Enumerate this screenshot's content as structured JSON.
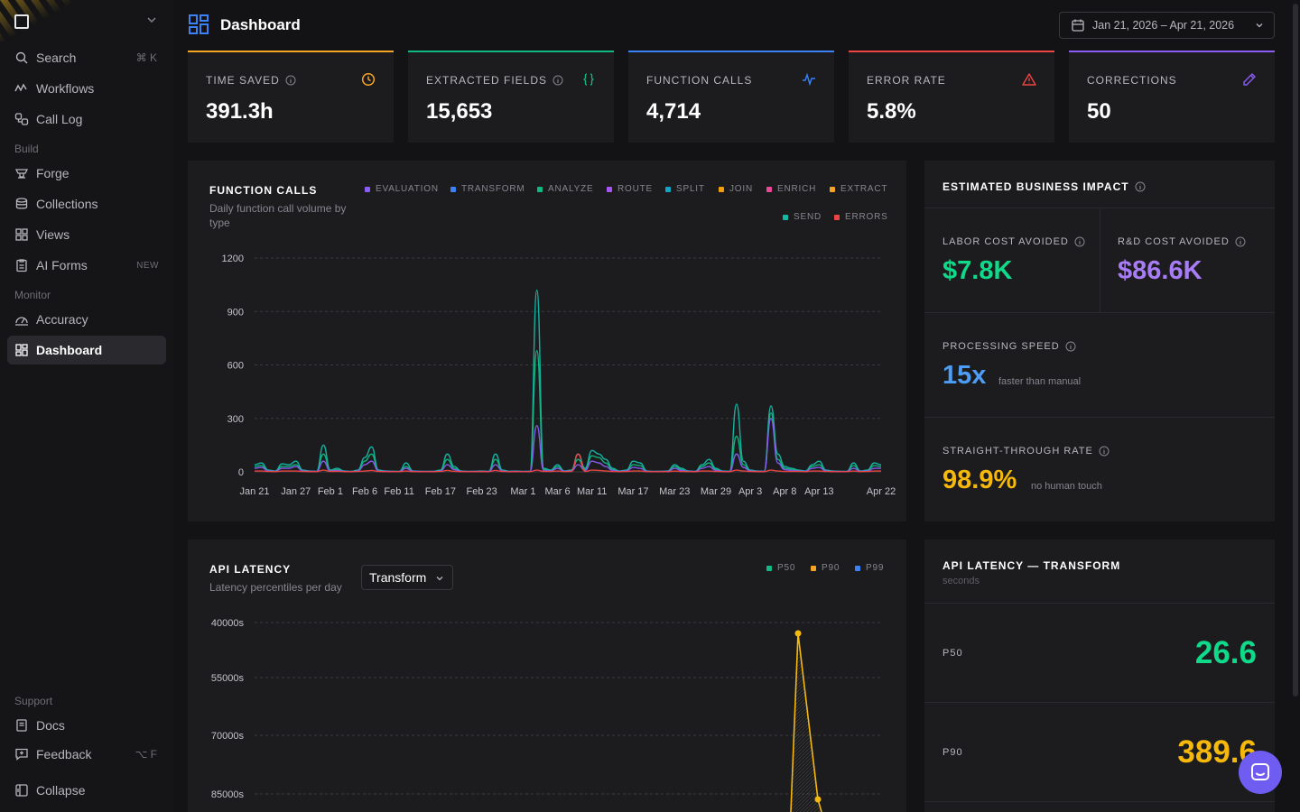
{
  "sidebar": {
    "search": {
      "label": "Search",
      "shortcut": "⌘ K"
    },
    "items_top": [
      {
        "label": "Workflows",
        "icon": "workflow-icon"
      },
      {
        "label": "Call Log",
        "icon": "call-log-icon"
      }
    ],
    "build_section": "Build",
    "build_items": [
      {
        "label": "Forge",
        "icon": "forge-icon"
      },
      {
        "label": "Collections",
        "icon": "database-icon"
      },
      {
        "label": "Views",
        "icon": "grid-icon"
      },
      {
        "label": "AI Forms",
        "icon": "clipboard-icon",
        "badge": "NEW"
      }
    ],
    "monitor_section": "Monitor",
    "monitor_items": [
      {
        "label": "Accuracy",
        "icon": "gauge-icon"
      },
      {
        "label": "Dashboard",
        "icon": "dashboard-icon",
        "active": true
      }
    ],
    "support_section": "Support",
    "support_items": [
      {
        "label": "Docs",
        "icon": "book-icon"
      },
      {
        "label": "Feedback",
        "icon": "feedback-icon",
        "shortcut": "⌥ F"
      }
    ],
    "collapse": {
      "label": "Collapse"
    }
  },
  "header": {
    "title": "Dashboard",
    "date_range": "Jan 21, 2026 – Apr 21, 2026"
  },
  "stats": [
    {
      "label": "TIME SAVED",
      "value": "391.3h",
      "color": "#f5a524",
      "icon": "clock-icon"
    },
    {
      "label": "EXTRACTED FIELDS",
      "value": "15,653",
      "color": "#10b981",
      "icon": "braces-icon"
    },
    {
      "label": "FUNCTION CALLS",
      "value": "4,714",
      "color": "#3b82f6",
      "icon": "activity-icon"
    },
    {
      "label": "ERROR RATE",
      "value": "5.8%",
      "color": "#ef4444",
      "icon": "warning-icon"
    },
    {
      "label": "CORRECTIONS",
      "value": "50",
      "color": "#8b5cf6",
      "icon": "pencil-icon"
    }
  ],
  "function_calls_panel": {
    "title": "FUNCTION CALLS",
    "subtitle": "Daily function call volume by type",
    "legend": [
      {
        "name": "EVALUATION",
        "color": "#8b5cf6"
      },
      {
        "name": "TRANSFORM",
        "color": "#3b82f6"
      },
      {
        "name": "ANALYZE",
        "color": "#10b981"
      },
      {
        "name": "ROUTE",
        "color": "#a855f7"
      },
      {
        "name": "SPLIT",
        "color": "#0ea5c6"
      },
      {
        "name": "JOIN",
        "color": "#f59e0b"
      },
      {
        "name": "ENRICH",
        "color": "#ec4899"
      },
      {
        "name": "EXTRACT",
        "color": "#f5a524"
      },
      {
        "name": "SEND",
        "color": "#14b8a6"
      },
      {
        "name": "ERRORS",
        "color": "#ef4444"
      }
    ]
  },
  "chart_data": [
    {
      "type": "line",
      "title": "FUNCTION CALLS",
      "ylim": [
        0,
        1200
      ],
      "yticks": [
        0,
        300,
        600,
        900,
        1200
      ],
      "xticks": [
        "Jan 21",
        "Jan 27",
        "Feb 1",
        "Feb 6",
        "Feb 11",
        "Feb 17",
        "Feb 23",
        "Mar 1",
        "Mar 6",
        "Mar 11",
        "Mar 17",
        "Mar 23",
        "Mar 29",
        "Apr 3",
        "Apr 8",
        "Apr 13",
        "Apr 22"
      ],
      "x": [
        0,
        1,
        2,
        3,
        4,
        5,
        6,
        7,
        8,
        9,
        10,
        11,
        12,
        13,
        14,
        15,
        16,
        17,
        18,
        19,
        20,
        21,
        22,
        23,
        24,
        25,
        26,
        27,
        28,
        29,
        30,
        31,
        32,
        33,
        34,
        35,
        36,
        37,
        38,
        39,
        40,
        41,
        42,
        43,
        44,
        45,
        46,
        47,
        48,
        49,
        50,
        51,
        52,
        53,
        54,
        55,
        56,
        57,
        58,
        59,
        60,
        61,
        62,
        63,
        64,
        65,
        66,
        67,
        68,
        69,
        70,
        71,
        72,
        73,
        74,
        75,
        76,
        77,
        78,
        79,
        80,
        81,
        82,
        83,
        84,
        85,
        86,
        87,
        88,
        89,
        90,
        91
      ],
      "series": [
        {
          "name": "SEND",
          "values": [
            40,
            50,
            10,
            5,
            45,
            40,
            60,
            10,
            5,
            3,
            150,
            10,
            20,
            5,
            2,
            10,
            80,
            140,
            10,
            5,
            3,
            2,
            50,
            5,
            3,
            2,
            3,
            10,
            100,
            30,
            5,
            2,
            3,
            5,
            2,
            100,
            10,
            3,
            5,
            2,
            3,
            1020,
            20,
            10,
            40,
            5,
            10,
            100,
            20,
            120,
            100,
            70,
            20,
            5,
            10,
            60,
            50,
            5,
            2,
            3,
            5,
            40,
            20,
            5,
            3,
            40,
            70,
            20,
            5,
            3,
            380,
            60,
            10,
            5,
            3,
            370,
            100,
            30,
            20,
            10,
            5,
            40,
            60,
            10,
            5,
            3,
            2,
            50,
            5,
            10,
            50,
            40
          ]
        },
        {
          "name": "ANALYZE",
          "values": [
            30,
            35,
            8,
            4,
            30,
            30,
            40,
            8,
            4,
            2,
            100,
            8,
            12,
            4,
            2,
            8,
            60,
            100,
            8,
            4,
            2,
            2,
            30,
            4,
            2,
            2,
            2,
            8,
            70,
            20,
            4,
            2,
            2,
            4,
            2,
            70,
            8,
            2,
            4,
            2,
            2,
            680,
            14,
            8,
            30,
            4,
            8,
            70,
            14,
            90,
            80,
            50,
            14,
            4,
            8,
            40,
            35,
            4,
            2,
            2,
            4,
            30,
            14,
            4,
            2,
            30,
            50,
            14,
            4,
            2,
            200,
            40,
            8,
            4,
            2,
            330,
            70,
            20,
            14,
            8,
            4,
            30,
            40,
            8,
            4,
            2,
            2,
            35,
            4,
            8,
            35,
            30
          ]
        },
        {
          "name": "EVALUATION",
          "values": [
            20,
            25,
            5,
            3,
            20,
            20,
            30,
            5,
            3,
            2,
            60,
            5,
            8,
            3,
            2,
            5,
            40,
            60,
            5,
            3,
            2,
            2,
            20,
            3,
            2,
            2,
            2,
            5,
            40,
            12,
            3,
            2,
            2,
            3,
            2,
            40,
            5,
            2,
            3,
            2,
            2,
            260,
            8,
            5,
            20,
            3,
            5,
            40,
            8,
            60,
            50,
            30,
            8,
            3,
            5,
            25,
            20,
            3,
            2,
            2,
            3,
            20,
            8,
            3,
            2,
            20,
            30,
            8,
            3,
            2,
            100,
            25,
            5,
            3,
            2,
            300,
            50,
            12,
            8,
            5,
            3,
            20,
            25,
            5,
            3,
            2,
            2,
            20,
            3,
            5,
            20,
            20
          ]
        },
        {
          "name": "ERRORS",
          "values": [
            5,
            5,
            2,
            1,
            5,
            5,
            5,
            2,
            1,
            1,
            10,
            2,
            3,
            1,
            1,
            2,
            5,
            8,
            2,
            1,
            1,
            1,
            5,
            1,
            1,
            1,
            1,
            2,
            8,
            3,
            1,
            1,
            1,
            1,
            1,
            8,
            2,
            1,
            1,
            1,
            1,
            10,
            2,
            2,
            5,
            1,
            2,
            100,
            2,
            10,
            8,
            5,
            2,
            1,
            2,
            5,
            5,
            1,
            1,
            1,
            1,
            5,
            2,
            1,
            1,
            5,
            5,
            2,
            1,
            1,
            10,
            5,
            2,
            1,
            1,
            10,
            5,
            2,
            2,
            2,
            1,
            5,
            5,
            2,
            1,
            1,
            1,
            5,
            1,
            2,
            5,
            5
          ]
        }
      ]
    },
    {
      "type": "line",
      "title": "API LATENCY",
      "yticks_labels": [
        "40000s",
        "55000s",
        "70000s",
        "85000s"
      ],
      "series": [
        {
          "name": "P90",
          "values": [
            90,
            6
          ]
        }
      ]
    }
  ],
  "impact": {
    "title": "ESTIMATED BUSINESS IMPACT",
    "labor_label": "LABOR COST AVOIDED",
    "labor_value": "$7.8K",
    "rd_label": "R&D COST AVOIDED",
    "rd_value": "$86.6K",
    "speed_label": "PROCESSING SPEED",
    "speed_value": "15x",
    "speed_note": "faster than manual",
    "stp_label": "STRAIGHT-THROUGH RATE",
    "stp_value": "98.9%",
    "stp_note": "no human touch",
    "colors": {
      "labor": "#10d98a",
      "rd": "#a87cf5",
      "speed": "#4d9cf5",
      "stp": "#f5b80b"
    }
  },
  "latency_panel": {
    "title": "API LATENCY",
    "subtitle": "Latency percentiles per day",
    "select_value": "Transform",
    "legend": [
      {
        "name": "P50",
        "color": "#10b981"
      },
      {
        "name": "P90",
        "color": "#f5a524"
      },
      {
        "name": "P99",
        "color": "#3b82f6"
      }
    ],
    "y_labels": [
      "40000s",
      "55000s",
      "70000s",
      "85000s"
    ]
  },
  "latency_transform": {
    "title": "API LATENCY — TRANSFORM",
    "subtitle": "seconds",
    "rows": [
      {
        "label": "P50",
        "value": "26.6",
        "color": "#10d98a"
      },
      {
        "label": "P90",
        "value": "389.6",
        "color": "#f5b80b"
      }
    ]
  }
}
